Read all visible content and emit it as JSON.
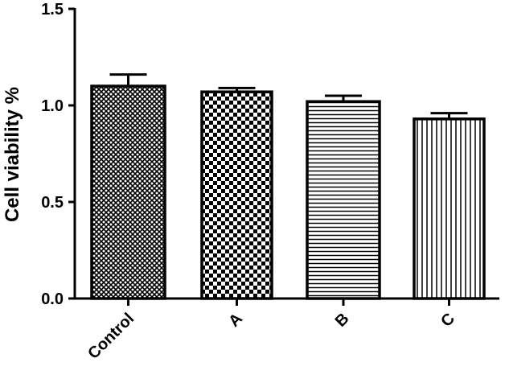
{
  "chart_data": {
    "type": "bar",
    "categories": [
      "Control",
      "A",
      "B",
      "C"
    ],
    "values": [
      1.1,
      1.07,
      1.02,
      0.93
    ],
    "errors": [
      0.06,
      0.02,
      0.03,
      0.03
    ],
    "fill_patterns": [
      "crosshatch-fine",
      "checkerboard",
      "horizontal-lines",
      "vertical-lines"
    ],
    "ylabel": "Cell viability %",
    "xlabel": "",
    "title": "",
    "ylim": [
      0,
      1.5
    ],
    "yticks": [
      "0.0",
      "0.5",
      "1.0",
      "1.5"
    ],
    "grid": false,
    "legend": "none",
    "colors": {
      "bar_stroke": "#000000",
      "bar_pattern": "#000000",
      "background": "#ffffff"
    }
  }
}
